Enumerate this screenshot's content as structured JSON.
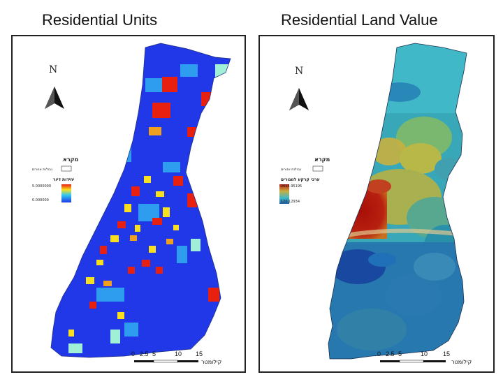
{
  "titles": {
    "left": "Residential Units",
    "right": "Residential Land Value"
  },
  "left_map": {
    "north_label": "N",
    "legend_title": "מקרא",
    "legend_boundary_label": "גבולות אזורים",
    "legend_ramp_title": "יחידות דיור",
    "legend_high": "5.0000000",
    "legend_low": "0.000000",
    "scale_ticks": [
      "0",
      "2.5",
      "5",
      "10",
      "15"
    ],
    "scale_unit": "קילומטר",
    "colors": {
      "base": "#2038e8",
      "mid": "#30a8f0",
      "hot": "#e82010",
      "warm": "#f8e020",
      "pale": "#a0f0d8"
    }
  },
  "right_map": {
    "north_label": "N",
    "legend_title": "מקרא",
    "legend_boundary_label": "גבולות אזורים",
    "legend_ramp_title": "ערכי קרקע למגורים",
    "legend_high": "2615.95195",
    "legend_low": "120.12934",
    "scale_ticks": [
      "0",
      "2.5",
      "5",
      "10",
      "15"
    ],
    "scale_unit": "קילומטר",
    "colors": {
      "north": "#40b8c8",
      "middle": "#c8b040",
      "hot": "#b81810",
      "south": "#2060a8"
    }
  }
}
